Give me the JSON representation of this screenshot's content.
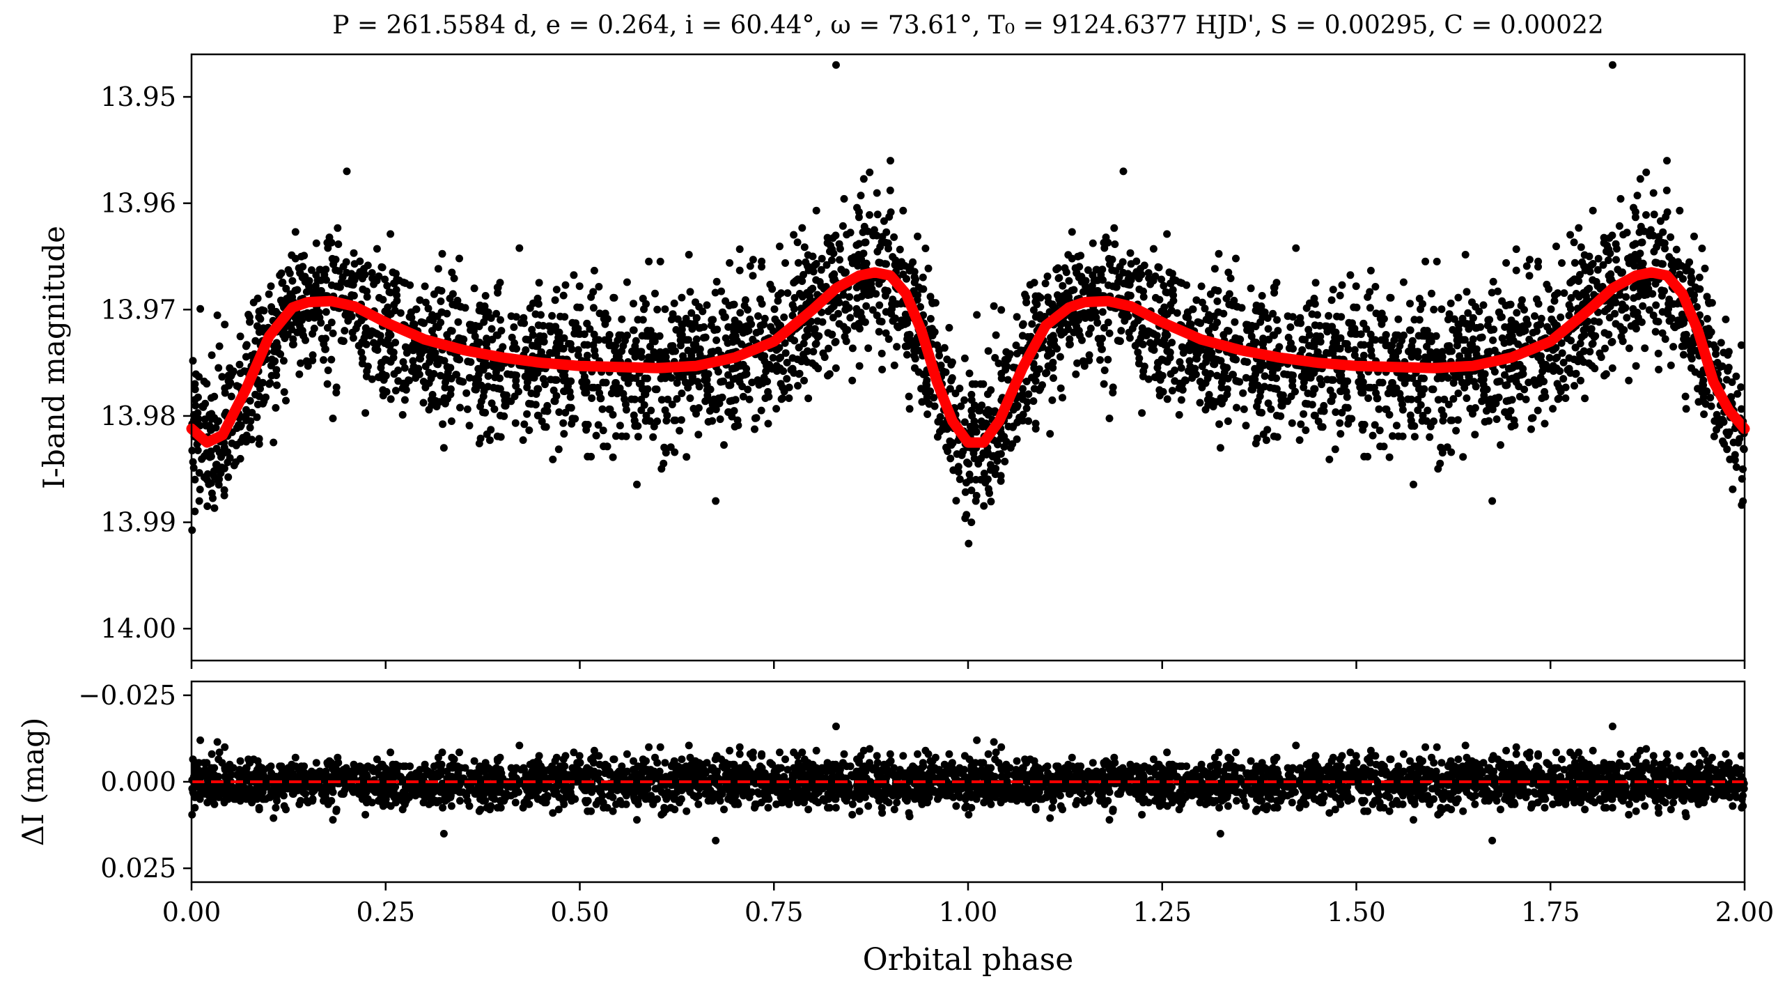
{
  "chart_data": [
    {
      "type": "scatter",
      "panel": "top",
      "title": "P = 261.5584 d, e = 0.264, i = 60.44°, ω = 73.61°, T₀ = 9124.6377 HJD', S = 0.00295, C = 0.00022",
      "xlabel": "",
      "ylabel": "I-band magnitude",
      "xlim": [
        0.0,
        2.0
      ],
      "ylim": [
        14.003,
        13.946
      ],
      "y_inverted": true,
      "yticks": [
        "13.95",
        "13.96",
        "13.97",
        "13.98",
        "13.99",
        "14.00"
      ],
      "grid": false,
      "legend": "none",
      "scatter_style": {
        "marker": "circle",
        "color": "#000000"
      },
      "model_series": {
        "type": "line",
        "color": "#ff0000",
        "x": [
          0.0,
          0.02,
          0.04,
          0.07,
          0.1,
          0.13,
          0.15,
          0.18,
          0.21,
          0.25,
          0.3,
          0.35,
          0.4,
          0.45,
          0.5,
          0.55,
          0.6,
          0.65,
          0.7,
          0.75,
          0.8,
          0.83,
          0.86,
          0.88,
          0.9,
          0.92,
          0.94,
          0.96,
          0.98,
          1.0,
          1.02,
          1.04,
          1.07,
          1.1,
          1.13,
          1.15,
          1.18,
          1.21,
          1.25,
          1.3,
          1.35,
          1.4,
          1.45,
          1.5,
          1.55,
          1.6,
          1.65,
          1.7,
          1.75,
          1.8,
          1.83,
          1.86,
          1.88,
          1.9,
          1.92,
          1.94,
          1.96,
          1.98,
          2.0
        ],
        "y": [
          13.9812,
          13.9825,
          13.9818,
          13.9775,
          13.9725,
          13.9698,
          13.9693,
          13.9692,
          13.9697,
          13.9712,
          13.9728,
          13.9738,
          13.9745,
          13.975,
          13.9753,
          13.9754,
          13.9755,
          13.9753,
          13.9745,
          13.973,
          13.97,
          13.968,
          13.9668,
          13.9665,
          13.9668,
          13.9685,
          13.972,
          13.9768,
          13.9805,
          13.9825,
          13.9825,
          13.9805,
          13.9755,
          13.9715,
          13.9698,
          13.9693,
          13.9692,
          13.9697,
          13.9712,
          13.9728,
          13.9738,
          13.9745,
          13.975,
          13.9753,
          13.9754,
          13.9755,
          13.9753,
          13.9745,
          13.973,
          13.97,
          13.968,
          13.9668,
          13.9665,
          13.9668,
          13.9685,
          13.972,
          13.9768,
          13.9795,
          13.9812
        ]
      },
      "observations": {
        "description_of_envelope": "points scatter about the model with ~±0.006 mag spread; phase 1.00–2.00 repeats phase 0.00–1.00",
        "scatter_sd": 0.0035,
        "notable_points": [
          {
            "x": 0.83,
            "y": 13.947
          },
          {
            "x": 1.83,
            "y": 13.947
          },
          {
            "x": 0.9,
            "y": 13.956
          },
          {
            "x": 1.9,
            "y": 13.956
          },
          {
            "x": 0.2,
            "y": 13.957
          },
          {
            "x": 1.2,
            "y": 13.957
          },
          {
            "x": 0.01,
            "y": 13.988
          },
          {
            "x": 1.01,
            "y": 13.988
          },
          {
            "x": 0.675,
            "y": 13.988
          },
          {
            "x": 1.675,
            "y": 13.988
          },
          {
            "x": 0.325,
            "y": 13.983
          },
          {
            "x": 1.325,
            "y": 13.983
          },
          {
            "x": 0.175,
            "y": 13.977
          },
          {
            "x": 1.175,
            "y": 13.977
          }
        ]
      }
    },
    {
      "type": "scatter",
      "panel": "bottom",
      "xlabel": "Orbital phase",
      "ylabel": "ΔI (mag)",
      "xlim": [
        0.0,
        2.0
      ],
      "ylim": [
        0.029,
        -0.029
      ],
      "y_inverted": true,
      "yticks": [
        "−0.025",
        "0.000",
        "0.025"
      ],
      "xticks": [
        "0.00",
        "0.25",
        "0.50",
        "0.75",
        "1.00",
        "1.25",
        "1.50",
        "1.75",
        "2.00"
      ],
      "grid": false,
      "legend": "none",
      "reference_line": {
        "y": 0.0,
        "style": "dashed",
        "color": "#ff0000"
      },
      "residual_sd": 0.0035,
      "notable_points": [
        {
          "x": 0.83,
          "y": -0.016
        },
        {
          "x": 1.83,
          "y": -0.016
        },
        {
          "x": 0.675,
          "y": 0.017
        },
        {
          "x": 1.675,
          "y": 0.017
        },
        {
          "x": 0.325,
          "y": 0.015
        },
        {
          "x": 1.325,
          "y": 0.015
        }
      ]
    }
  ]
}
